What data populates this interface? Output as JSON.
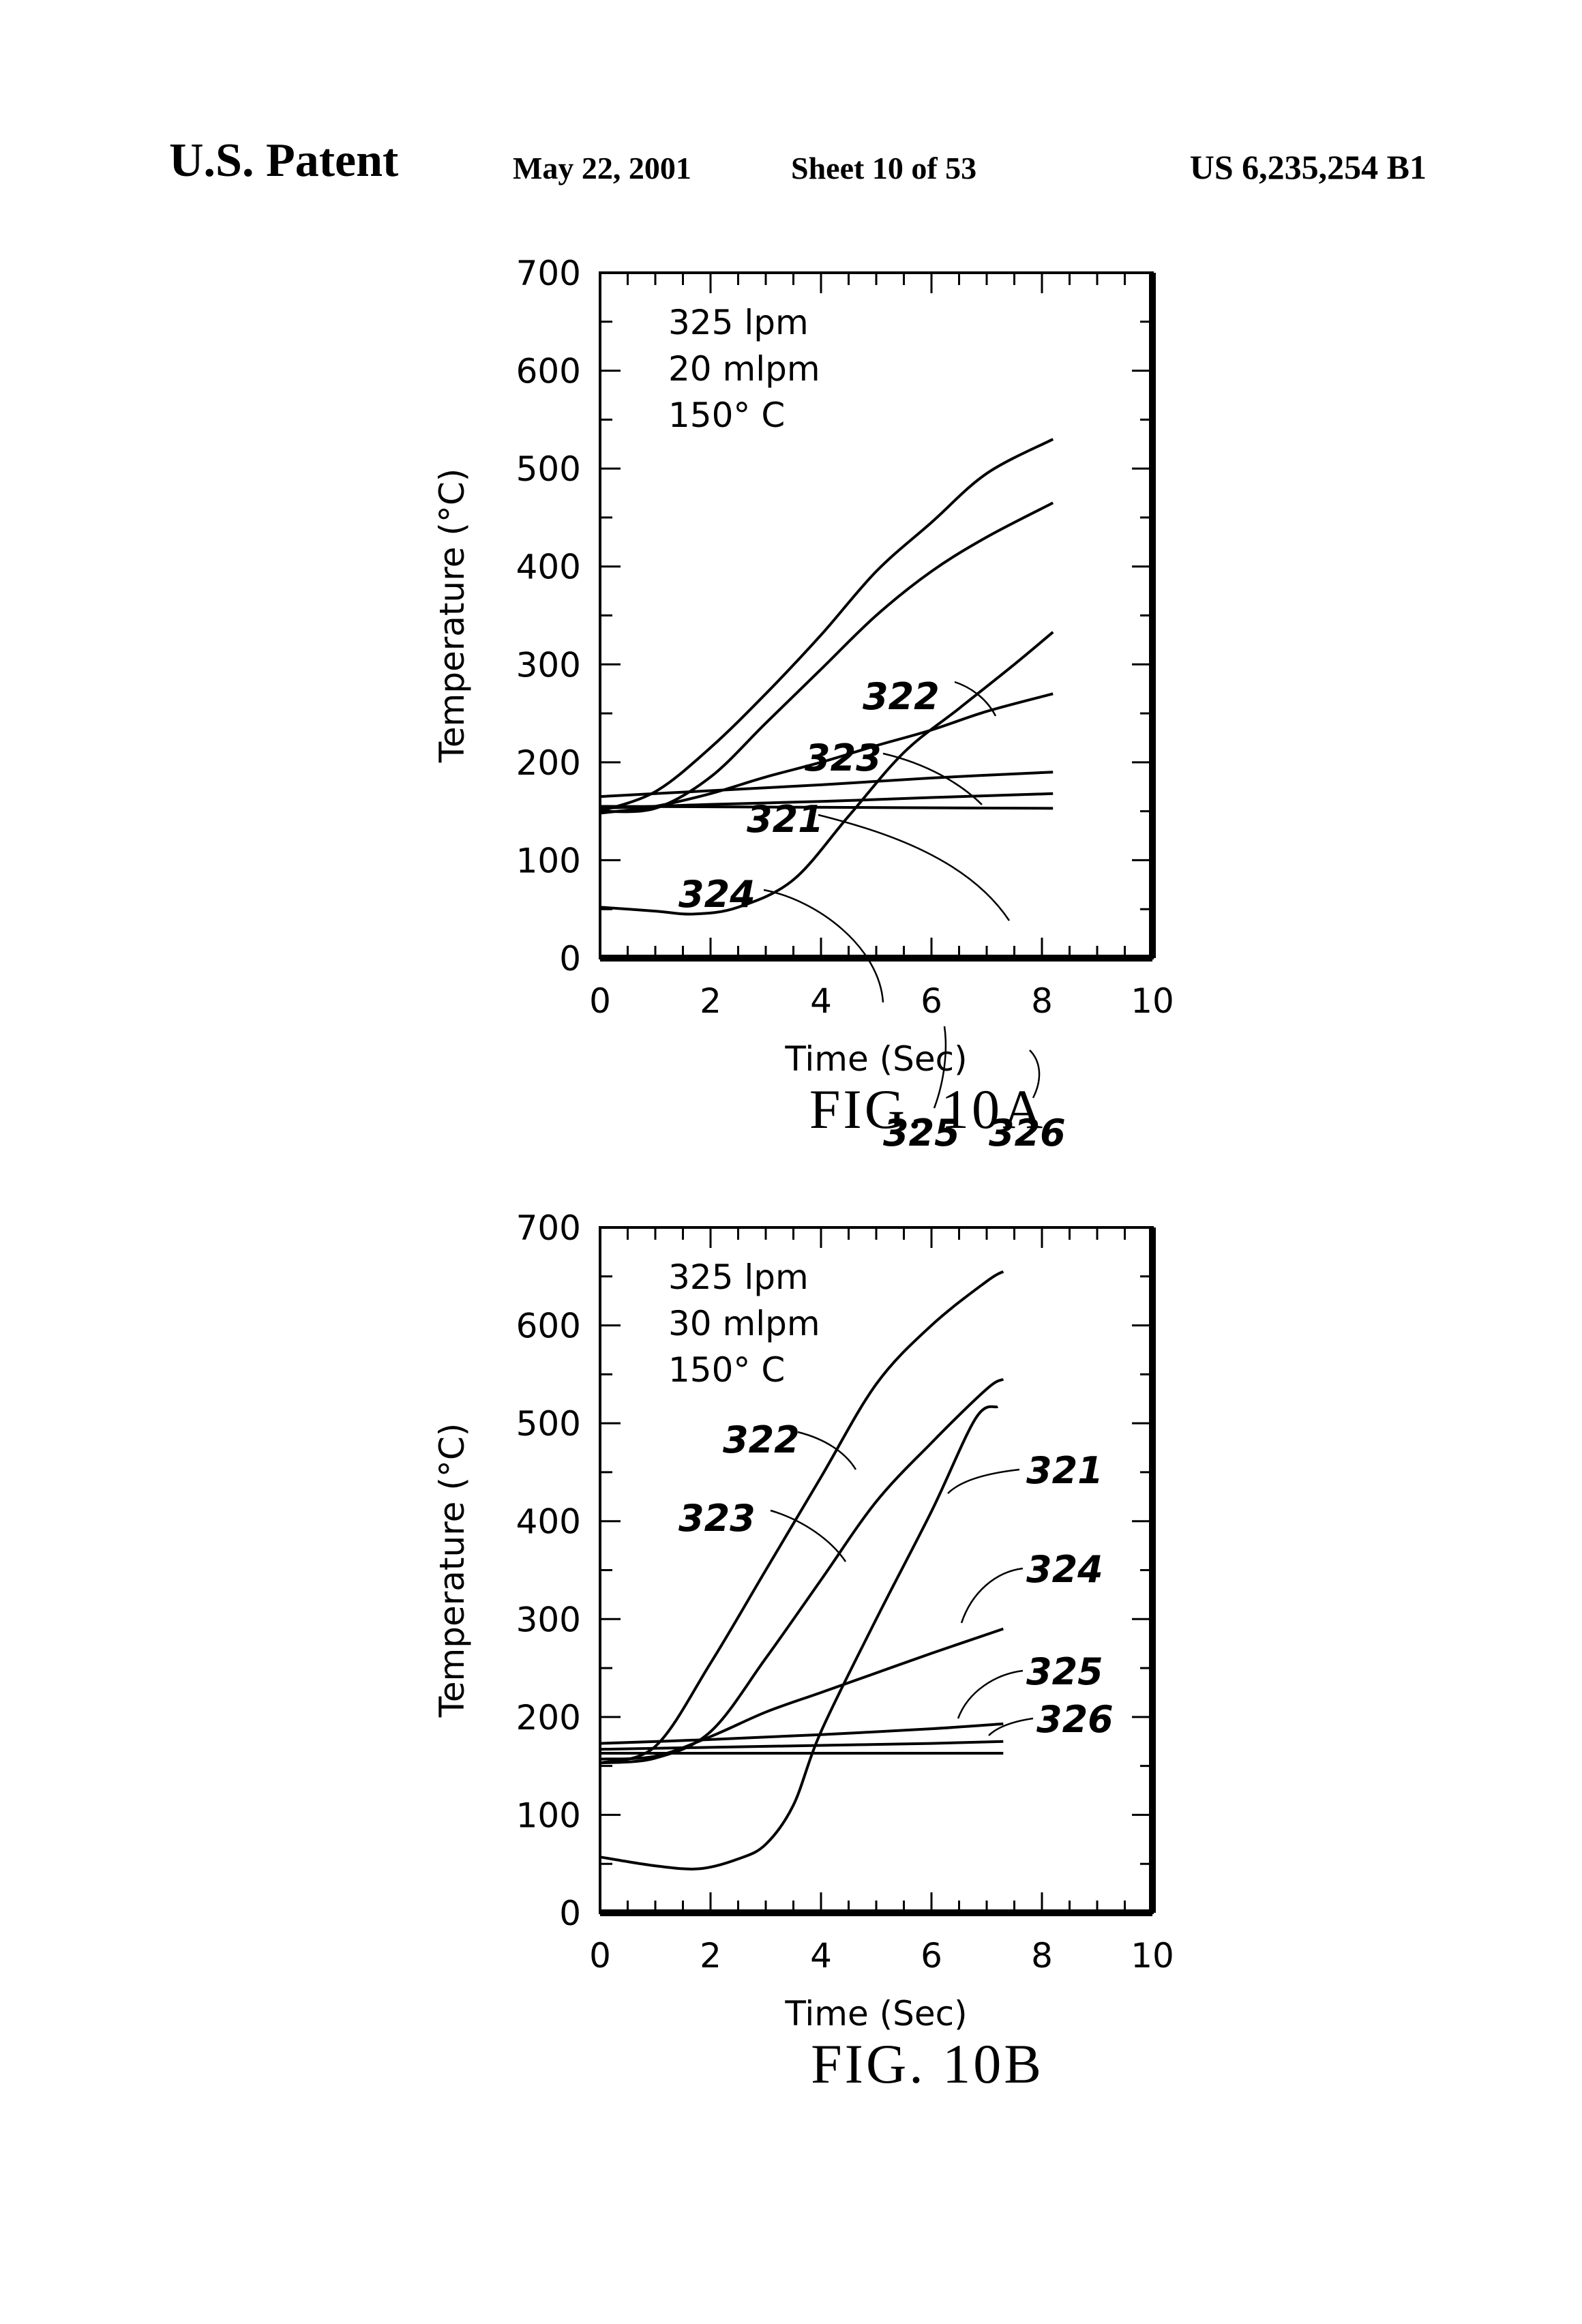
{
  "header": {
    "patent": "U.S. Patent",
    "date": "May 22, 2001",
    "sheet": "Sheet 10 of 53",
    "number": "US 6,235,254 B1"
  },
  "chart_data": [
    {
      "type": "line",
      "figure_label": "FIG. 10A",
      "xlabel": "Time (Sec)",
      "ylabel": "Temperature (°C)",
      "xlim": [
        0,
        10
      ],
      "ylim": [
        0,
        700
      ],
      "xticks": [
        "0",
        "2",
        "4",
        "6",
        "8",
        "10"
      ],
      "yticks": [
        "0",
        "100",
        "200",
        "300",
        "400",
        "500",
        "600",
        "700"
      ],
      "conditions": [
        "325 lpm",
        "20 mlpm",
        "150° C"
      ],
      "grid": false,
      "series": [
        {
          "name": "322",
          "x": [
            0,
            1,
            2,
            3,
            4,
            5,
            6,
            7,
            8.2
          ],
          "y": [
            150,
            170,
            215,
            270,
            330,
            395,
            445,
            495,
            530
          ]
        },
        {
          "name": "323",
          "x": [
            0,
            1,
            2,
            3,
            4,
            5,
            6,
            7,
            8.2
          ],
          "y": [
            150,
            153,
            185,
            240,
            295,
            350,
            395,
            430,
            465
          ]
        },
        {
          "name": "321",
          "x": [
            0,
            1,
            1.7,
            2.5,
            3.5,
            4.5,
            5.5,
            6.5,
            7.5,
            8.2
          ],
          "y": [
            52,
            48,
            45,
            52,
            80,
            145,
            210,
            255,
            300,
            333
          ]
        },
        {
          "name": "324",
          "x": [
            0,
            1,
            2,
            3,
            4,
            5,
            6,
            7,
            8.2
          ],
          "y": [
            148,
            155,
            168,
            185,
            200,
            217,
            233,
            252,
            270
          ]
        },
        {
          "name": "325",
          "x": [
            0,
            2,
            4,
            6,
            8.2
          ],
          "y": [
            165,
            171,
            177,
            184,
            190
          ]
        },
        {
          "name": "326",
          "x": [
            0,
            2,
            4,
            6,
            8.2
          ],
          "y": [
            153,
            157,
            160,
            164,
            168
          ]
        },
        {
          "name": "",
          "x": [
            0,
            8.2
          ],
          "y": [
            155,
            153
          ]
        }
      ],
      "annotations": [
        "322",
        "323",
        "321",
        "324",
        "325",
        "326"
      ]
    },
    {
      "type": "line",
      "figure_label": "FIG. 10B",
      "xlabel": "Time (Sec)",
      "ylabel": "Temperature (°C)",
      "xlim": [
        0,
        10
      ],
      "ylim": [
        0,
        700
      ],
      "xticks": [
        "0",
        "2",
        "4",
        "6",
        "8",
        "10"
      ],
      "yticks": [
        "0",
        "100",
        "200",
        "300",
        "400",
        "500",
        "600",
        "700"
      ],
      "conditions": [
        "325 lpm",
        "30 mlpm",
        "150° C"
      ],
      "grid": false,
      "series": [
        {
          "name": "322",
          "x": [
            0,
            1,
            2,
            3,
            4,
            5,
            6,
            7,
            7.3
          ],
          "y": [
            153,
            170,
            255,
            350,
            445,
            540,
            600,
            645,
            655
          ]
        },
        {
          "name": "323",
          "x": [
            0,
            1,
            2,
            3,
            4,
            5,
            6,
            7,
            7.3
          ],
          "y": [
            153,
            158,
            185,
            260,
            340,
            420,
            480,
            535,
            545
          ]
        },
        {
          "name": "321",
          "x": [
            0,
            1,
            1.8,
            2.5,
            3,
            3.5,
            4,
            5,
            6,
            6.8,
            7.2
          ],
          "y": [
            57,
            48,
            45,
            55,
            70,
            110,
            185,
            300,
            410,
            505,
            517
          ]
        },
        {
          "name": "324",
          "x": [
            0,
            1,
            2,
            3,
            4,
            5,
            6,
            7.3
          ],
          "y": [
            157,
            160,
            180,
            205,
            225,
            245,
            265,
            290
          ]
        },
        {
          "name": "325",
          "x": [
            0,
            2,
            4,
            6,
            7.3
          ],
          "y": [
            173,
            177,
            182,
            188,
            193
          ]
        },
        {
          "name": "326",
          "x": [
            0,
            2,
            4,
            6,
            7.3
          ],
          "y": [
            167,
            169,
            171,
            173,
            175
          ]
        },
        {
          "name": "",
          "x": [
            0,
            7.3
          ],
          "y": [
            163,
            163
          ]
        }
      ],
      "annotations": [
        "322",
        "323",
        "321",
        "324",
        "325",
        "326"
      ]
    }
  ]
}
